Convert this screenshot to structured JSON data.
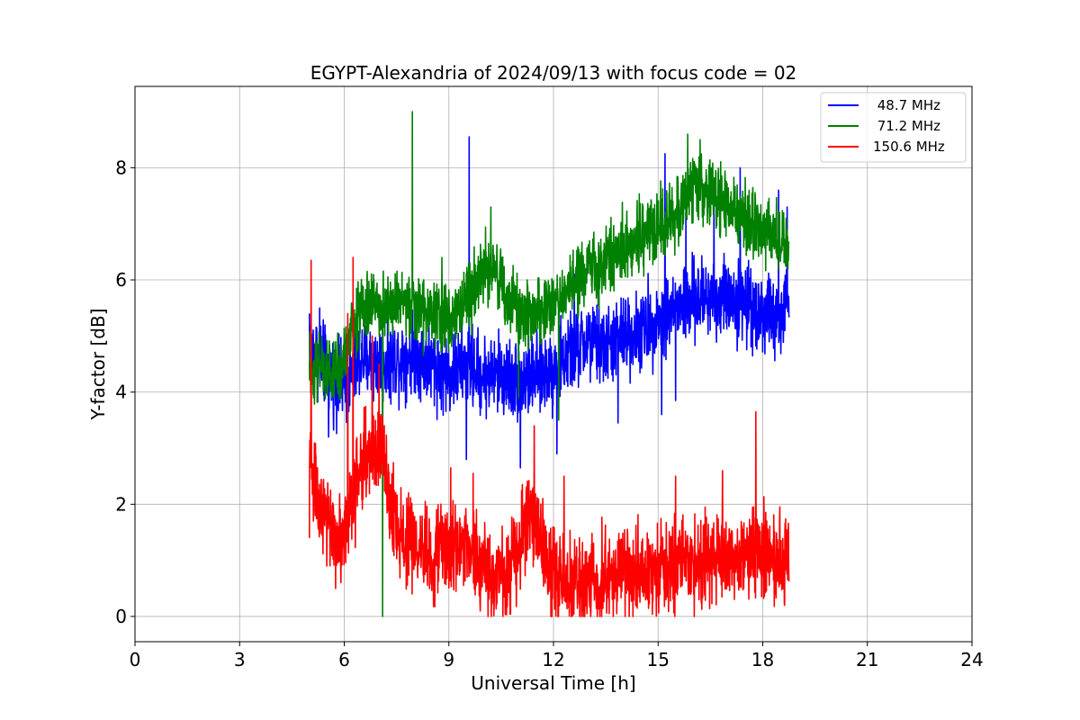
{
  "chart_data": {
    "type": "line",
    "title": "EGYPT-Alexandria of 2024/09/13 with focus code = 02",
    "xlabel": "Universal Time [h]",
    "ylabel": "Y-factor [dB]",
    "xlim": [
      0,
      24
    ],
    "ylim": [
      -0.45,
      9.45
    ],
    "xticks": [
      0,
      3,
      6,
      9,
      12,
      15,
      18,
      21,
      24
    ],
    "yticks": [
      0,
      2,
      4,
      6,
      8
    ],
    "grid": true,
    "legend_position": "top-right",
    "series": [
      {
        "name": " 48.7 MHz",
        "color": "#0000ff",
        "noise": 0.35,
        "x": [
          5.0,
          5.3,
          5.6,
          6.0,
          6.5,
          7.0,
          7.5,
          8.0,
          8.5,
          9.0,
          9.5,
          10.0,
          10.5,
          11.0,
          11.5,
          12.0,
          12.5,
          13.0,
          13.5,
          14.0,
          14.5,
          15.0,
          15.5,
          16.0,
          16.5,
          17.0,
          17.5,
          18.0,
          18.5,
          18.75
        ],
        "y": [
          4.8,
          4.6,
          4.3,
          4.1,
          4.6,
          4.5,
          4.6,
          4.7,
          4.5,
          4.3,
          4.5,
          4.3,
          4.3,
          4.2,
          4.3,
          4.4,
          4.7,
          4.9,
          4.8,
          5.0,
          5.1,
          5.3,
          5.5,
          5.6,
          5.7,
          5.7,
          5.6,
          5.4,
          5.3,
          5.5
        ],
        "spikes": [
          [
            5.0,
            5.4
          ],
          [
            5.3,
            5.5
          ],
          [
            5.55,
            3.2
          ],
          [
            9.5,
            2.8
          ],
          [
            9.58,
            8.55
          ],
          [
            10.8,
            3.7
          ],
          [
            11.05,
            2.65
          ],
          [
            12.1,
            2.9
          ],
          [
            12.6,
            6.1
          ],
          [
            13.3,
            6.0
          ],
          [
            13.85,
            3.45
          ],
          [
            15.1,
            3.6
          ],
          [
            15.2,
            8.25
          ],
          [
            15.5,
            3.85
          ],
          [
            15.8,
            7.2
          ],
          [
            16.6,
            7.5
          ],
          [
            17.35,
            8.0
          ],
          [
            18.45,
            7.6
          ],
          [
            18.7,
            7.3
          ]
        ]
      },
      {
        "name": " 71.2 MHz",
        "color": "#008000",
        "noise": 0.3,
        "x": [
          5.0,
          5.3,
          5.6,
          5.9,
          6.2,
          6.5,
          7.0,
          7.5,
          8.0,
          8.5,
          9.0,
          9.5,
          10.0,
          10.3,
          10.6,
          11.0,
          11.5,
          12.0,
          12.5,
          13.0,
          13.5,
          14.0,
          14.5,
          15.0,
          15.3,
          15.6,
          15.9,
          16.1,
          16.4,
          16.8,
          17.2,
          17.6,
          18.0,
          18.4,
          18.75
        ],
        "y": [
          4.4,
          4.4,
          4.3,
          4.4,
          5.0,
          5.5,
          5.6,
          5.6,
          5.5,
          5.4,
          5.3,
          5.6,
          6.2,
          6.3,
          5.7,
          5.4,
          5.4,
          5.6,
          5.9,
          6.2,
          6.3,
          6.6,
          6.8,
          6.9,
          7.0,
          7.3,
          7.6,
          7.7,
          7.6,
          7.4,
          7.2,
          7.0,
          6.9,
          6.8,
          6.6
        ],
        "spikes": [
          [
            7.1,
            0.0
          ],
          [
            7.95,
            9.0
          ],
          [
            8.8,
            6.4
          ],
          [
            9.6,
            6.3
          ],
          [
            10.2,
            7.3
          ],
          [
            11.0,
            3.9
          ],
          [
            12.15,
            3.5
          ],
          [
            15.85,
            8.6
          ],
          [
            16.2,
            8.5
          ]
        ]
      },
      {
        "name": "150.6 MHz",
        "color": "#ff0000",
        "noise": 0.4,
        "x": [
          5.0,
          5.1,
          5.3,
          5.6,
          5.9,
          6.2,
          6.5,
          6.8,
          7.1,
          7.3,
          7.6,
          8.0,
          8.5,
          9.0,
          9.5,
          10.0,
          10.5,
          11.0,
          11.3,
          11.6,
          12.0,
          12.5,
          13.0,
          13.5,
          14.0,
          14.5,
          15.0,
          15.5,
          16.0,
          16.5,
          17.0,
          17.5,
          18.0,
          18.4,
          18.75
        ],
        "y": [
          3.2,
          2.4,
          1.9,
          1.6,
          1.3,
          2.1,
          2.7,
          3.0,
          2.8,
          2.0,
          1.5,
          1.2,
          1.1,
          1.3,
          1.1,
          0.9,
          0.8,
          1.0,
          2.0,
          1.3,
          0.7,
          0.6,
          0.6,
          0.7,
          0.7,
          0.8,
          0.8,
          0.8,
          0.9,
          1.0,
          1.0,
          1.1,
          1.2,
          1.1,
          1.0
        ],
        "spikes": [
          [
            5.05,
            6.35
          ],
          [
            5.0,
            1.4
          ],
          [
            5.5,
            0.9
          ],
          [
            5.75,
            0.5
          ],
          [
            6.25,
            6.4
          ],
          [
            6.1,
            5.4
          ],
          [
            6.8,
            5.0
          ],
          [
            7.0,
            4.5
          ],
          [
            9.05,
            2.65
          ],
          [
            9.7,
            2.55
          ],
          [
            11.45,
            3.4
          ],
          [
            12.3,
            2.5
          ],
          [
            12.8,
            0.0
          ],
          [
            13.6,
            0.05
          ],
          [
            14.7,
            0.3
          ],
          [
            15.5,
            2.5
          ],
          [
            16.85,
            2.6
          ],
          [
            17.8,
            3.65
          ]
        ]
      }
    ]
  }
}
